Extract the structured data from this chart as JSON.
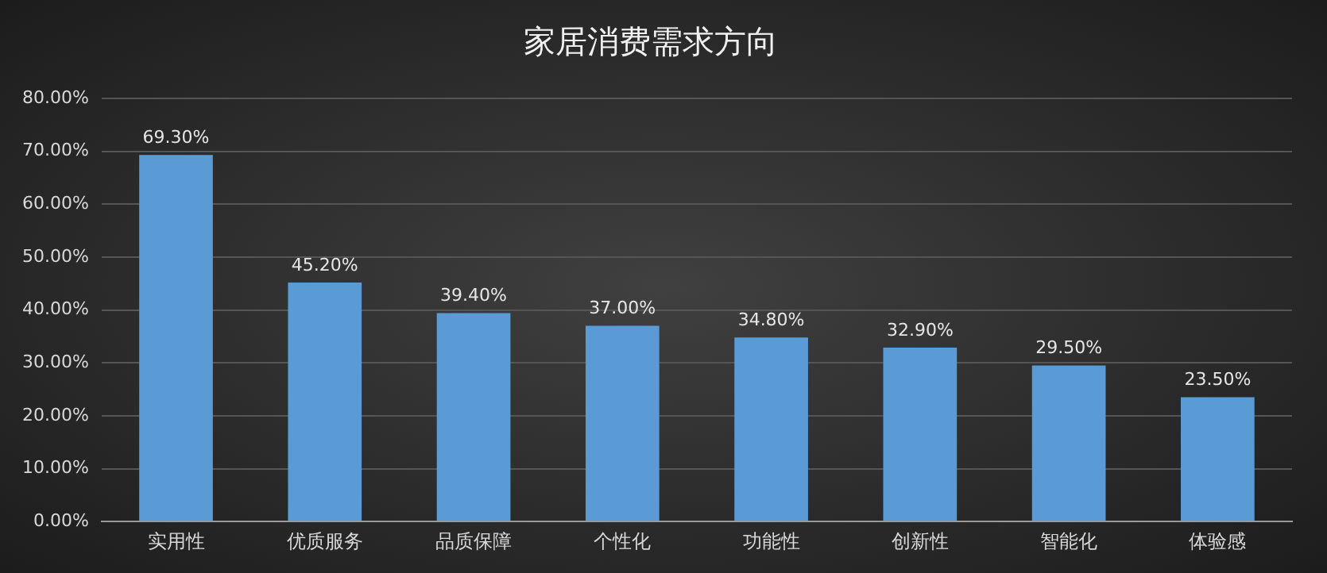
{
  "chart_data": {
    "type": "bar",
    "title": "家居消费需求方向",
    "categories": [
      "实用性",
      "优质服务",
      "品质保障",
      "个性化",
      "功能性",
      "创新性",
      "智能化",
      "体验感"
    ],
    "values": [
      69.3,
      45.2,
      39.4,
      37.0,
      34.8,
      32.9,
      29.5,
      23.5
    ],
    "value_labels": [
      "69.30%",
      "45.20%",
      "39.40%",
      "37.00%",
      "34.80%",
      "32.90%",
      "29.50%",
      "23.50%"
    ],
    "color": "#5b9bd5",
    "ylim": [
      0,
      80
    ],
    "yticks": [
      {
        "value": 0,
        "label": "0.00%"
      },
      {
        "value": 10,
        "label": "10.00%"
      },
      {
        "value": 20,
        "label": "20.00%"
      },
      {
        "value": 30,
        "label": "30.00%"
      },
      {
        "value": 40,
        "label": "40.00%"
      },
      {
        "value": 50,
        "label": "50.00%"
      },
      {
        "value": 60,
        "label": "60.00%"
      },
      {
        "value": 70,
        "label": "70.00%"
      },
      {
        "value": 80,
        "label": "80.00%"
      }
    ],
    "grid": "y",
    "legend": false
  }
}
